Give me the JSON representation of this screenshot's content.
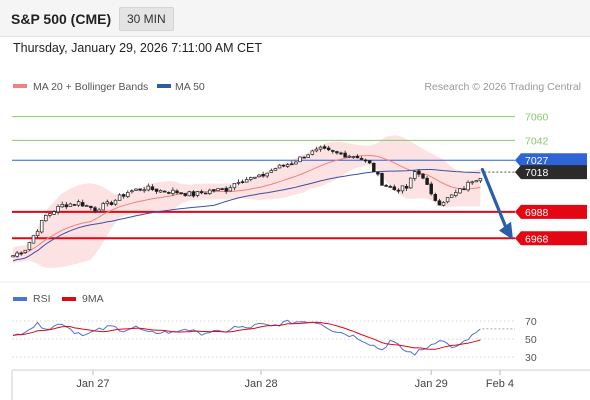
{
  "header": {
    "title": "S&P 500 (CME)",
    "timeframe": "30 MIN"
  },
  "datetime": "Thursday, January 29, 2026 7:11:00 AM CET",
  "credit": "Research © 2026 Trading Central",
  "colors": {
    "up_candle": "#ffffff",
    "down_candle": "#1a1a1a",
    "bollinger_fill": "#fbd8d8",
    "ma20": "#f28080",
    "ma50": "#3f4fa0",
    "resistance_green": "#8cc96b",
    "resistance_blue": "#2f64d6",
    "support_red": "#e30613",
    "current_price": "#2b2b2b",
    "forecast_arrow": "#2a5fa5",
    "rsi": "#4c72d9",
    "rsi_ma": "#e30613"
  },
  "chart_data": [
    {
      "type": "candlestick",
      "legend": [
        {
          "name": "MA 20 + Bollinger Bands",
          "color": "#f28080"
        },
        {
          "name": "MA 50",
          "color": "#2f5aa8"
        }
      ],
      "y_range": [
        6938,
        7068
      ],
      "x_ticks": [
        "Jan 27",
        "Jan 28",
        "Jan 29",
        "Feb 4"
      ],
      "levels": [
        {
          "value": 7060,
          "label": "7060",
          "kind": "resistance",
          "color": "#8cc96b"
        },
        {
          "value": 7042,
          "label": "7042",
          "kind": "resistance",
          "color": "#8cc96b"
        },
        {
          "value": 7027,
          "label": "7027",
          "kind": "pivot",
          "color": "#2f64d6"
        },
        {
          "value": 6988,
          "label": "6988",
          "kind": "support",
          "color": "#e30613"
        },
        {
          "value": 6968,
          "label": "6968",
          "kind": "support",
          "color": "#e30613"
        }
      ],
      "current_price": {
        "value": 7018,
        "label": "7018"
      },
      "anchors": [
        {
          "i": 0,
          "v": 6955
        },
        {
          "i": 3,
          "v": 6960
        },
        {
          "i": 6,
          "v": 6975
        },
        {
          "i": 8,
          "v": 6985
        },
        {
          "i": 12,
          "v": 6993
        },
        {
          "i": 16,
          "v": 6995
        },
        {
          "i": 20,
          "v": 6990
        },
        {
          "i": 24,
          "v": 6995
        },
        {
          "i": 28,
          "v": 7003
        },
        {
          "i": 32,
          "v": 7006
        },
        {
          "i": 36,
          "v": 7004
        },
        {
          "i": 40,
          "v": 7003
        },
        {
          "i": 44,
          "v": 7001
        },
        {
          "i": 48,
          "v": 7004
        },
        {
          "i": 52,
          "v": 7005
        },
        {
          "i": 55,
          "v": 7012
        },
        {
          "i": 60,
          "v": 7014
        },
        {
          "i": 64,
          "v": 7021
        },
        {
          "i": 68,
          "v": 7025
        },
        {
          "i": 72,
          "v": 7032
        },
        {
          "i": 75,
          "v": 7035
        },
        {
          "i": 79,
          "v": 7032
        },
        {
          "i": 84,
          "v": 7030
        },
        {
          "i": 87,
          "v": 7024
        },
        {
          "i": 90,
          "v": 7010
        },
        {
          "i": 93,
          "v": 7005
        },
        {
          "i": 96,
          "v": 7006
        },
        {
          "i": 98,
          "v": 7018
        },
        {
          "i": 100,
          "v": 7015
        },
        {
          "i": 102,
          "v": 7000
        },
        {
          "i": 104,
          "v": 6995
        },
        {
          "i": 106,
          "v": 6998
        },
        {
          "i": 108,
          "v": 7002
        },
        {
          "i": 110,
          "v": 7006
        },
        {
          "i": 112,
          "v": 7012
        },
        {
          "i": 114,
          "v": 7015
        }
      ]
    },
    {
      "type": "line",
      "name": "RSI",
      "legend": [
        {
          "name": "RSI",
          "color": "#4c72d9"
        },
        {
          "name": "9MA",
          "color": "#e30613"
        }
      ],
      "y_ticks": [
        70,
        50,
        30
      ],
      "y_range": [
        20,
        80
      ],
      "x_ticks": [
        "Jan 27",
        "Jan 28",
        "Jan 29",
        "Feb 4"
      ],
      "rsi_anchors": [
        {
          "i": 0,
          "v": 52
        },
        {
          "i": 3,
          "v": 60
        },
        {
          "i": 6,
          "v": 66
        },
        {
          "i": 9,
          "v": 62
        },
        {
          "i": 12,
          "v": 68
        },
        {
          "i": 15,
          "v": 58
        },
        {
          "i": 18,
          "v": 55
        },
        {
          "i": 21,
          "v": 60
        },
        {
          "i": 24,
          "v": 64
        },
        {
          "i": 27,
          "v": 60
        },
        {
          "i": 30,
          "v": 63
        },
        {
          "i": 33,
          "v": 56
        },
        {
          "i": 36,
          "v": 58
        },
        {
          "i": 39,
          "v": 57
        },
        {
          "i": 42,
          "v": 62
        },
        {
          "i": 45,
          "v": 56
        },
        {
          "i": 48,
          "v": 58
        },
        {
          "i": 51,
          "v": 57
        },
        {
          "i": 54,
          "v": 63
        },
        {
          "i": 57,
          "v": 62
        },
        {
          "i": 60,
          "v": 66
        },
        {
          "i": 63,
          "v": 64
        },
        {
          "i": 66,
          "v": 68
        },
        {
          "i": 69,
          "v": 69
        },
        {
          "i": 72,
          "v": 70
        },
        {
          "i": 75,
          "v": 68
        },
        {
          "i": 78,
          "v": 60
        },
        {
          "i": 81,
          "v": 56
        },
        {
          "i": 84,
          "v": 52
        },
        {
          "i": 87,
          "v": 45
        },
        {
          "i": 90,
          "v": 38
        },
        {
          "i": 92,
          "v": 48
        },
        {
          "i": 94,
          "v": 42
        },
        {
          "i": 96,
          "v": 36
        },
        {
          "i": 98,
          "v": 34
        },
        {
          "i": 100,
          "v": 38
        },
        {
          "i": 102,
          "v": 44
        },
        {
          "i": 104,
          "v": 50
        },
        {
          "i": 106,
          "v": 44
        },
        {
          "i": 108,
          "v": 40
        },
        {
          "i": 110,
          "v": 46
        },
        {
          "i": 112,
          "v": 54
        },
        {
          "i": 114,
          "v": 60
        }
      ]
    }
  ]
}
